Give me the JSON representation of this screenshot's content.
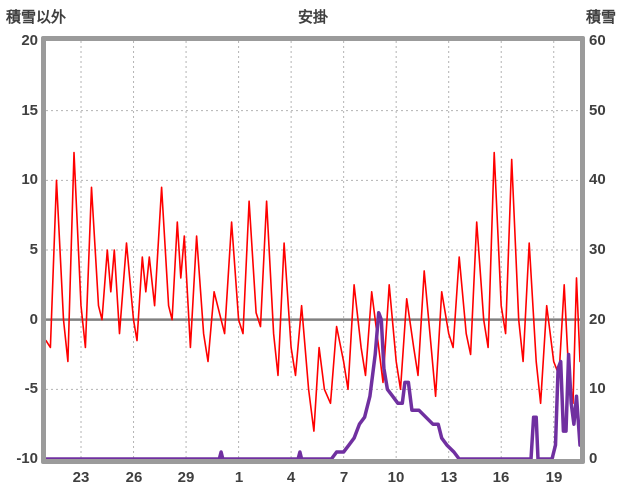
{
  "header": {
    "left_label": "積雪以外",
    "title": "安掛",
    "right_label": "積雪"
  },
  "chart_data": {
    "type": "line",
    "title": "安掛",
    "grid": true,
    "legend": "none",
    "left_axis": {
      "label": "積雪以外",
      "min": -10,
      "max": 20,
      "ticks": [
        20,
        15,
        10,
        5,
        0,
        -5,
        -10
      ]
    },
    "right_axis": {
      "label": "積雪",
      "min": 0,
      "max": 60,
      "ticks": [
        60,
        50,
        40,
        30,
        20,
        10,
        0
      ]
    },
    "x_axis": {
      "range": [
        0,
        30.5
      ],
      "tick_positions": [
        2,
        5,
        8,
        11,
        14,
        17,
        20,
        23,
        26,
        29
      ],
      "tick_labels": [
        "23",
        "26",
        "29",
        "1",
        "4",
        "7",
        "10",
        "13",
        "16",
        "19"
      ]
    },
    "zero_line_left_value": 0,
    "colors": {
      "temperature_line": "#ff0000",
      "snow_line": "#7030a0",
      "grid_line": "#b3b3b3",
      "zero_line": "#808080",
      "frame": "#9b9b9b",
      "text": "#3f3f3f"
    },
    "series": [
      {
        "name": "積雪以外",
        "axis": "left",
        "color": "#ff0000",
        "width": 1.6,
        "points": [
          [
            0,
            -1.5
          ],
          [
            0.25,
            -2
          ],
          [
            0.6,
            10
          ],
          [
            1,
            0
          ],
          [
            1.25,
            -3
          ],
          [
            1.6,
            12
          ],
          [
            2,
            1
          ],
          [
            2.25,
            -2
          ],
          [
            2.6,
            9.5
          ],
          [
            3,
            1
          ],
          [
            3.2,
            0
          ],
          [
            3.5,
            5
          ],
          [
            3.7,
            2
          ],
          [
            3.9,
            5
          ],
          [
            4.2,
            -1
          ],
          [
            4.6,
            5.5
          ],
          [
            5,
            0
          ],
          [
            5.2,
            -1.5
          ],
          [
            5.5,
            4.5
          ],
          [
            5.7,
            2
          ],
          [
            5.9,
            4.5
          ],
          [
            6.2,
            1
          ],
          [
            6.6,
            9.5
          ],
          [
            7,
            1
          ],
          [
            7.2,
            0
          ],
          [
            7.5,
            7
          ],
          [
            7.7,
            3
          ],
          [
            7.9,
            6
          ],
          [
            8.25,
            -2
          ],
          [
            8.6,
            6
          ],
          [
            9,
            -1
          ],
          [
            9.25,
            -3
          ],
          [
            9.6,
            2
          ],
          [
            10.2,
            -1
          ],
          [
            10.6,
            7
          ],
          [
            11,
            0
          ],
          [
            11.25,
            -1
          ],
          [
            11.6,
            8.5
          ],
          [
            12,
            0.5
          ],
          [
            12.25,
            -0.5
          ],
          [
            12.6,
            8.5
          ],
          [
            13,
            -1
          ],
          [
            13.25,
            -4
          ],
          [
            13.6,
            5.5
          ],
          [
            14,
            -2
          ],
          [
            14.25,
            -4
          ],
          [
            14.6,
            1
          ],
          [
            15,
            -5
          ],
          [
            15.3,
            -8
          ],
          [
            15.6,
            -2
          ],
          [
            15.9,
            -5
          ],
          [
            16.25,
            -6
          ],
          [
            16.6,
            -0.5
          ],
          [
            17,
            -3
          ],
          [
            17.25,
            -5
          ],
          [
            17.6,
            2.5
          ],
          [
            18,
            -2
          ],
          [
            18.25,
            -4
          ],
          [
            18.6,
            2
          ],
          [
            19,
            -2
          ],
          [
            19.25,
            -4.5
          ],
          [
            19.6,
            2.5
          ],
          [
            20,
            -3
          ],
          [
            20.25,
            -5
          ],
          [
            20.6,
            1.5
          ],
          [
            21,
            -2
          ],
          [
            21.25,
            -4
          ],
          [
            21.6,
            3.5
          ],
          [
            22,
            -2
          ],
          [
            22.25,
            -5.5
          ],
          [
            22.6,
            2
          ],
          [
            23,
            -1
          ],
          [
            23.25,
            -2
          ],
          [
            23.6,
            4.5
          ],
          [
            24,
            -1
          ],
          [
            24.25,
            -2.5
          ],
          [
            24.6,
            7
          ],
          [
            25,
            0
          ],
          [
            25.25,
            -2
          ],
          [
            25.6,
            12
          ],
          [
            26,
            1
          ],
          [
            26.25,
            -1
          ],
          [
            26.6,
            11.5
          ],
          [
            27,
            0
          ],
          [
            27.25,
            -3
          ],
          [
            27.6,
            5.5
          ],
          [
            28,
            -3
          ],
          [
            28.25,
            -6
          ],
          [
            28.6,
            1
          ],
          [
            29,
            -3
          ],
          [
            29.3,
            -4
          ],
          [
            29.6,
            2.5
          ],
          [
            29.9,
            -5
          ],
          [
            30.1,
            -6
          ],
          [
            30.3,
            3
          ],
          [
            30.5,
            -3
          ]
        ]
      },
      {
        "name": "積雪",
        "axis": "right",
        "color": "#7030a0",
        "width": 3.5,
        "points": [
          [
            0,
            0
          ],
          [
            9.9,
            0
          ],
          [
            10,
            1
          ],
          [
            10.1,
            0
          ],
          [
            14.4,
            0
          ],
          [
            14.5,
            1
          ],
          [
            14.6,
            0
          ],
          [
            16.3,
            0
          ],
          [
            16.6,
            1
          ],
          [
            17,
            1
          ],
          [
            17.3,
            2
          ],
          [
            17.6,
            3
          ],
          [
            17.9,
            5
          ],
          [
            18.2,
            6
          ],
          [
            18.5,
            9
          ],
          [
            18.8,
            15
          ],
          [
            19,
            21
          ],
          [
            19.15,
            20
          ],
          [
            19.3,
            13
          ],
          [
            19.5,
            10
          ],
          [
            19.8,
            9
          ],
          [
            20.1,
            8
          ],
          [
            20.35,
            8
          ],
          [
            20.5,
            11
          ],
          [
            20.7,
            11
          ],
          [
            20.9,
            7
          ],
          [
            21.3,
            7
          ],
          [
            21.7,
            6
          ],
          [
            22.1,
            5
          ],
          [
            22.4,
            5
          ],
          [
            22.6,
            3
          ],
          [
            22.9,
            2
          ],
          [
            23.3,
            1
          ],
          [
            23.6,
            0
          ],
          [
            27.7,
            0
          ],
          [
            27.85,
            6
          ],
          [
            28,
            6
          ],
          [
            28.1,
            0
          ],
          [
            28.9,
            0
          ],
          [
            29.1,
            2
          ],
          [
            29.25,
            13
          ],
          [
            29.4,
            14
          ],
          [
            29.55,
            4
          ],
          [
            29.7,
            4
          ],
          [
            29.85,
            15
          ],
          [
            30,
            8
          ],
          [
            30.15,
            5
          ],
          [
            30.3,
            9
          ],
          [
            30.5,
            2
          ]
        ]
      }
    ]
  }
}
